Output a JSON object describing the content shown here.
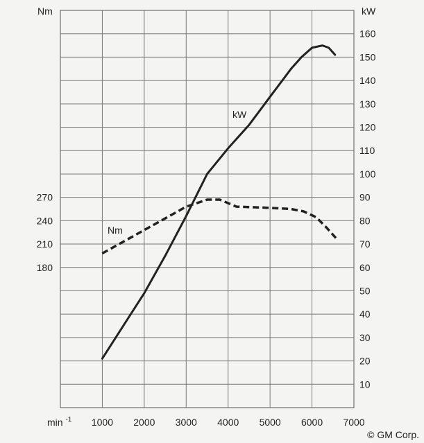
{
  "chart_data": {
    "type": "line",
    "left_axis": {
      "unit_label": "Nm",
      "ticks": [
        180,
        210,
        240,
        270
      ]
    },
    "right_axis": {
      "unit_label": "kW",
      "ticks": [
        10,
        20,
        30,
        40,
        50,
        60,
        70,
        80,
        90,
        100,
        110,
        120,
        130,
        140,
        150,
        160
      ],
      "range": [
        0,
        170
      ]
    },
    "x_axis": {
      "unit_label": "min",
      "unit_superscript": "-1",
      "ticks": [
        1000,
        2000,
        3000,
        4000,
        5000,
        6000,
        7000
      ],
      "range": [
        0,
        7000
      ]
    },
    "grid": true,
    "series": [
      {
        "name": "kW",
        "axis": "right",
        "style": "solid",
        "color": "#222222",
        "points": [
          [
            1000,
            21
          ],
          [
            1500,
            35
          ],
          [
            2000,
            49
          ],
          [
            2500,
            65
          ],
          [
            3000,
            82
          ],
          [
            3500,
            100
          ],
          [
            4000,
            111
          ],
          [
            4500,
            121
          ],
          [
            5000,
            133
          ],
          [
            5500,
            145
          ],
          [
            5750,
            150
          ],
          [
            6000,
            154
          ],
          [
            6250,
            155
          ],
          [
            6400,
            154
          ],
          [
            6550,
            151
          ]
        ]
      },
      {
        "name": "Nm",
        "axis": "left",
        "style": "dashed",
        "color": "#222222",
        "points": [
          [
            1000,
            66
          ],
          [
            1500,
            71
          ],
          [
            2000,
            76
          ],
          [
            2500,
            81
          ],
          [
            3000,
            86
          ],
          [
            3500,
            89
          ],
          [
            3800,
            89
          ],
          [
            4200,
            86
          ],
          [
            5000,
            85.5
          ],
          [
            5500,
            85
          ],
          [
            5800,
            84
          ],
          [
            6100,
            81.5
          ],
          [
            6350,
            77
          ],
          [
            6600,
            72
          ]
        ]
      }
    ],
    "annotations": [
      "kW",
      "Nm"
    ],
    "copyright": "© GM Corp."
  }
}
